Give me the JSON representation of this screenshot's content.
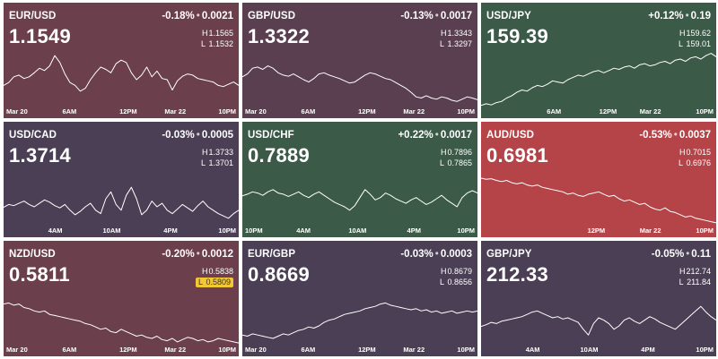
{
  "colors": {
    "maroon": "#6b3f4c",
    "plum": "#5a3f50",
    "slate": "#4a3f55",
    "green": "#3b5a48",
    "red": "#b54448"
  },
  "tiles": [
    {
      "pair": "EUR/USD",
      "change_pct": "-0.18%",
      "change_abs": "0.0021",
      "price": "1.1549",
      "high": "1.1565",
      "low": "1.1532",
      "low_highlight": false,
      "color": "#6b3f4c",
      "ticks": [
        "Mar 20",
        "6AM",
        "12PM",
        "Mar 22",
        "10PM"
      ],
      "chart_data": {
        "type": "line",
        "values": [
          0.4,
          0.45,
          0.55,
          0.58,
          0.52,
          0.55,
          0.62,
          0.7,
          0.66,
          0.74,
          0.92,
          0.8,
          0.6,
          0.45,
          0.4,
          0.3,
          0.35,
          0.5,
          0.62,
          0.72,
          0.68,
          0.62,
          0.78,
          0.84,
          0.8,
          0.62,
          0.5,
          0.58,
          0.72,
          0.55,
          0.65,
          0.52,
          0.5,
          0.32,
          0.48,
          0.56,
          0.6,
          0.58,
          0.52,
          0.5,
          0.48,
          0.46,
          0.4,
          0.38,
          0.42,
          0.46,
          0.4
        ]
      }
    },
    {
      "pair": "GBP/USD",
      "change_pct": "-0.13%",
      "change_abs": "0.0017",
      "price": "1.3322",
      "high": "1.3343",
      "low": "1.3297",
      "low_highlight": false,
      "color": "#5a3f50",
      "ticks": [
        "Mar 20",
        "6AM",
        "12PM",
        "Mar 22",
        "10PM"
      ],
      "chart_data": {
        "type": "line",
        "values": [
          0.55,
          0.6,
          0.7,
          0.72,
          0.68,
          0.74,
          0.7,
          0.62,
          0.58,
          0.56,
          0.6,
          0.55,
          0.5,
          0.46,
          0.52,
          0.6,
          0.62,
          0.58,
          0.55,
          0.52,
          0.48,
          0.44,
          0.46,
          0.52,
          0.58,
          0.62,
          0.6,
          0.56,
          0.52,
          0.5,
          0.45,
          0.4,
          0.35,
          0.28,
          0.2,
          0.18,
          0.22,
          0.18,
          0.16,
          0.2,
          0.18,
          0.14,
          0.12,
          0.16,
          0.2,
          0.18,
          0.15
        ]
      }
    },
    {
      "pair": "USD/JPY",
      "change_pct": "+0.12%",
      "change_abs": "0.19",
      "price": "159.39",
      "high": "159.62",
      "low": "159.01",
      "low_highlight": false,
      "color": "#3b5a48",
      "ticks": [
        "6AM",
        "12PM",
        "Mar 22",
        "10PM"
      ],
      "chart_data": {
        "type": "line",
        "values": [
          0.05,
          0.08,
          0.06,
          0.1,
          0.12,
          0.18,
          0.22,
          0.28,
          0.32,
          0.3,
          0.36,
          0.4,
          0.38,
          0.42,
          0.48,
          0.46,
          0.44,
          0.5,
          0.54,
          0.58,
          0.56,
          0.6,
          0.64,
          0.66,
          0.62,
          0.66,
          0.7,
          0.68,
          0.72,
          0.74,
          0.7,
          0.76,
          0.78,
          0.74,
          0.76,
          0.8,
          0.82,
          0.78,
          0.84,
          0.86,
          0.82,
          0.88,
          0.9,
          0.86,
          0.92,
          0.96,
          0.9
        ]
      }
    },
    {
      "pair": "USD/CAD",
      "change_pct": "-0.03%",
      "change_abs": "0.0005",
      "price": "1.3714",
      "high": "1.3733",
      "low": "1.3701",
      "low_highlight": false,
      "color": "#4a3f55",
      "ticks": [
        "4AM",
        "10AM",
        "4PM",
        "10PM"
      ],
      "chart_data": {
        "type": "line",
        "values": [
          0.35,
          0.4,
          0.38,
          0.42,
          0.46,
          0.4,
          0.36,
          0.42,
          0.48,
          0.44,
          0.38,
          0.34,
          0.4,
          0.3,
          0.22,
          0.28,
          0.36,
          0.42,
          0.3,
          0.24,
          0.5,
          0.62,
          0.4,
          0.3,
          0.56,
          0.7,
          0.5,
          0.22,
          0.3,
          0.46,
          0.36,
          0.42,
          0.3,
          0.24,
          0.32,
          0.4,
          0.34,
          0.28,
          0.38,
          0.46,
          0.36,
          0.3,
          0.24,
          0.2,
          0.16,
          0.24,
          0.3
        ]
      }
    },
    {
      "pair": "USD/CHF",
      "change_pct": "+0.22%",
      "change_abs": "0.0017",
      "price": "0.7889",
      "high": "0.7896",
      "low": "0.7865",
      "low_highlight": false,
      "color": "#3b5a48",
      "ticks": [
        "10PM",
        "4AM",
        "10AM",
        "4PM",
        "10PM"
      ],
      "chart_data": {
        "type": "line",
        "values": [
          0.55,
          0.58,
          0.62,
          0.6,
          0.56,
          0.62,
          0.66,
          0.6,
          0.58,
          0.54,
          0.58,
          0.62,
          0.56,
          0.52,
          0.58,
          0.62,
          0.56,
          0.5,
          0.44,
          0.4,
          0.36,
          0.3,
          0.38,
          0.52,
          0.66,
          0.58,
          0.48,
          0.52,
          0.6,
          0.56,
          0.5,
          0.46,
          0.42,
          0.48,
          0.52,
          0.46,
          0.4,
          0.44,
          0.5,
          0.56,
          0.48,
          0.42,
          0.36,
          0.52,
          0.6,
          0.64,
          0.6
        ]
      }
    },
    {
      "pair": "AUD/USD",
      "change_pct": "-0.53%",
      "change_abs": "0.0037",
      "price": "0.6981",
      "high": "0.7015",
      "low": "0.6976",
      "low_highlight": false,
      "color": "#b54448",
      "ticks": [
        "12PM",
        "Mar 22",
        "10PM"
      ],
      "chart_data": {
        "type": "line",
        "values": [
          0.86,
          0.84,
          0.85,
          0.82,
          0.8,
          0.82,
          0.78,
          0.76,
          0.78,
          0.74,
          0.72,
          0.74,
          0.7,
          0.68,
          0.66,
          0.64,
          0.62,
          0.58,
          0.6,
          0.56,
          0.54,
          0.58,
          0.6,
          0.62,
          0.58,
          0.54,
          0.56,
          0.5,
          0.46,
          0.48,
          0.44,
          0.4,
          0.42,
          0.36,
          0.32,
          0.3,
          0.34,
          0.28,
          0.26,
          0.22,
          0.18,
          0.2,
          0.16,
          0.14,
          0.12,
          0.1,
          0.08
        ]
      }
    },
    {
      "pair": "NZD/USD",
      "change_pct": "-0.20%",
      "change_abs": "0.0012",
      "price": "0.5811",
      "high": "0.5838",
      "low": "0.5809",
      "low_highlight": true,
      "color": "#6b3f4c",
      "ticks": [
        "Mar 20",
        "6AM",
        "12PM",
        "Mar 22",
        "10PM"
      ],
      "chart_data": {
        "type": "line",
        "values": [
          0.74,
          0.76,
          0.72,
          0.74,
          0.68,
          0.66,
          0.62,
          0.6,
          0.62,
          0.56,
          0.54,
          0.52,
          0.5,
          0.48,
          0.46,
          0.44,
          0.4,
          0.38,
          0.34,
          0.3,
          0.32,
          0.26,
          0.24,
          0.3,
          0.26,
          0.22,
          0.18,
          0.2,
          0.16,
          0.14,
          0.18,
          0.12,
          0.1,
          0.14,
          0.08,
          0.12,
          0.16,
          0.14,
          0.1,
          0.12,
          0.08,
          0.1,
          0.14,
          0.12,
          0.1,
          0.08,
          0.06
        ]
      }
    },
    {
      "pair": "EUR/GBP",
      "change_pct": "-0.03%",
      "change_abs": "0.0003",
      "price": "0.8669",
      "high": "0.8679",
      "low": "0.8656",
      "low_highlight": false,
      "color": "#4a3f55",
      "ticks": [
        "Mar 20",
        "6AM",
        "12PM",
        "Mar 22",
        "10PM"
      ],
      "chart_data": {
        "type": "line",
        "values": [
          0.2,
          0.18,
          0.22,
          0.2,
          0.18,
          0.16,
          0.14,
          0.18,
          0.22,
          0.2,
          0.24,
          0.28,
          0.3,
          0.34,
          0.32,
          0.36,
          0.42,
          0.46,
          0.48,
          0.52,
          0.56,
          0.58,
          0.6,
          0.62,
          0.66,
          0.68,
          0.7,
          0.74,
          0.76,
          0.72,
          0.7,
          0.68,
          0.66,
          0.64,
          0.66,
          0.62,
          0.64,
          0.6,
          0.62,
          0.58,
          0.6,
          0.62,
          0.58,
          0.6,
          0.62,
          0.6,
          0.62
        ]
      }
    },
    {
      "pair": "GBP/JPY",
      "change_pct": "-0.05%",
      "change_abs": "0.11",
      "price": "212.33",
      "high": "212.74",
      "low": "211.84",
      "low_highlight": false,
      "color": "#4a3f55",
      "ticks": [
        "4AM",
        "10AM",
        "4PM",
        "10PM"
      ],
      "chart_data": {
        "type": "line",
        "values": [
          0.35,
          0.38,
          0.42,
          0.4,
          0.44,
          0.46,
          0.48,
          0.5,
          0.52,
          0.56,
          0.6,
          0.62,
          0.58,
          0.54,
          0.5,
          0.52,
          0.48,
          0.5,
          0.46,
          0.42,
          0.3,
          0.2,
          0.4,
          0.5,
          0.46,
          0.4,
          0.3,
          0.36,
          0.46,
          0.5,
          0.44,
          0.4,
          0.46,
          0.52,
          0.48,
          0.42,
          0.38,
          0.34,
          0.3,
          0.38,
          0.46,
          0.54,
          0.62,
          0.7,
          0.6,
          0.52,
          0.46
        ]
      }
    }
  ]
}
